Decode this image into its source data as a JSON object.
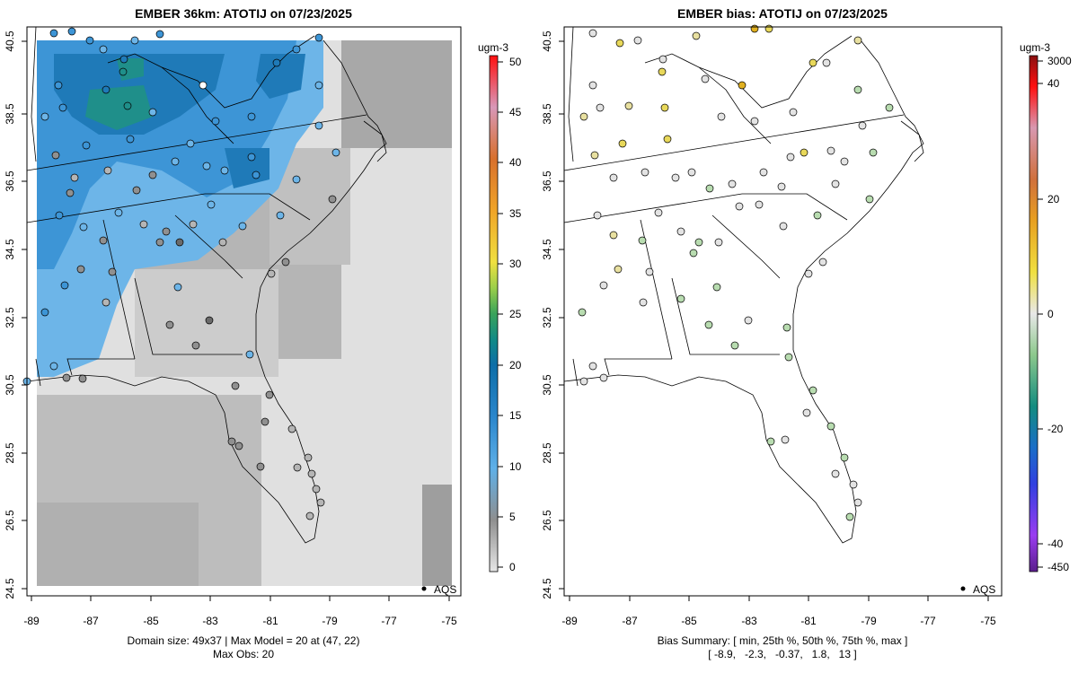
{
  "left_panel": {
    "title": "EMBER 36km: ATOTIJ on 07/23/2025",
    "x_ticks": [
      "-89",
      "-87",
      "-85",
      "-83",
      "-81",
      "-79",
      "-77",
      "-75"
    ],
    "y_ticks": [
      "24.5",
      "26.5",
      "28.5",
      "30.5",
      "32.5",
      "34.5",
      "36.5",
      "38.5",
      "40.5"
    ],
    "legend_label": "AQS",
    "summary_line1": "Domain size: 49x37 | Max Model = 20 at (47, 22)",
    "summary_line2": "Max Obs: 20",
    "colorbar": {
      "unit": "ugm-3",
      "ticks": [
        "0",
        "5",
        "10",
        "15",
        "20",
        "25",
        "30",
        "35",
        "40",
        "45",
        "50"
      ],
      "range": [
        0,
        50
      ]
    }
  },
  "right_panel": {
    "title": "EMBER bias: ATOTIJ on 07/23/2025",
    "x_ticks": [
      "-89",
      "-87",
      "-85",
      "-83",
      "-81",
      "-79",
      "-77",
      "-75"
    ],
    "y_ticks": [
      "24.5",
      "26.5",
      "28.5",
      "30.5",
      "32.5",
      "34.5",
      "36.5",
      "38.5",
      "40.5"
    ],
    "legend_label": "AQS",
    "summary_line1": "Bias Summary: [ min, 25th %, 50th %, 75th %, max ]",
    "summary_line2": "[ -8.9,   -2.3,   -0.37,   1.8,   13 ]",
    "colorbar": {
      "unit": "ugm-3",
      "ticks": [
        "3000",
        "40",
        "20",
        "0",
        "-20",
        "-40",
        "-450"
      ]
    }
  },
  "colors": {
    "gray_light": "#e3e3e3",
    "gray_mid": "#bdbdbd",
    "blue_light": "#6db5e8",
    "blue_mid": "#3d95d6",
    "blue_dark": "#1f7ab8",
    "teal": "#1f8f8a",
    "bias_green": "#b8dcb0",
    "bias_yellow": "#e8d85a",
    "bias_orange": "#e0b020"
  }
}
